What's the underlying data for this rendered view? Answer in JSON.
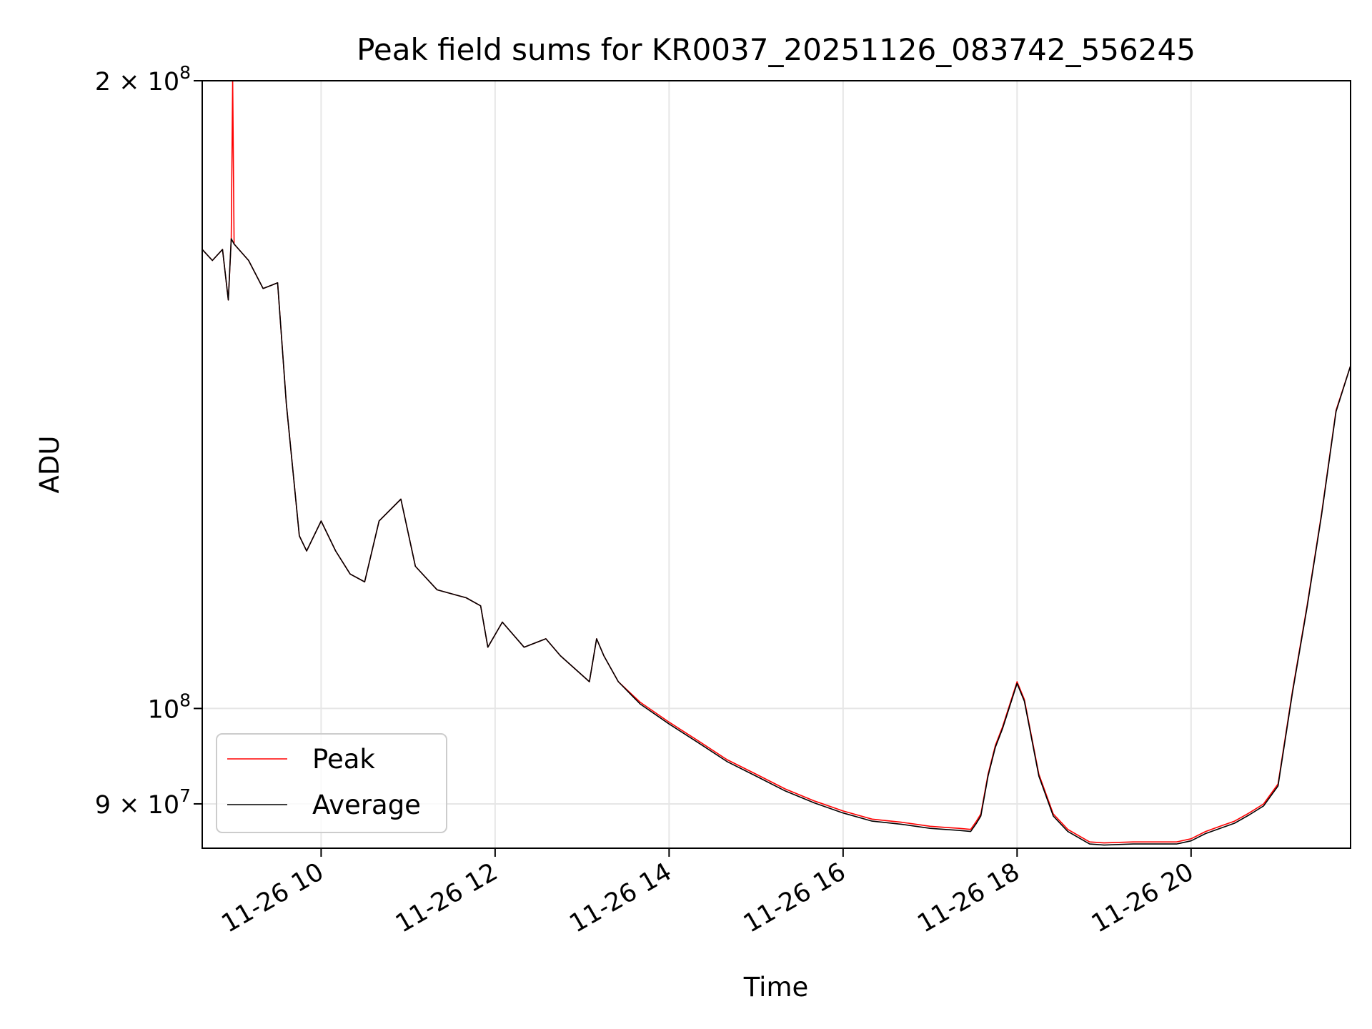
{
  "chart_data": {
    "type": "line",
    "title": "Peak field sums for KR0037_20251126_083742_556245",
    "xlabel": "Time",
    "ylabel": "ADU",
    "yscale": "log",
    "grid": true,
    "legend_position": "lower-left",
    "xlim": [
      "2025-11-26 08:38",
      "2025-11-26 21:50"
    ],
    "ylim": [
      85700000,
      200000000
    ],
    "x_ticks": [
      {
        "value": "2025-11-26 10:00",
        "label": "11-26 10"
      },
      {
        "value": "2025-11-26 12:00",
        "label": "11-26 12"
      },
      {
        "value": "2025-11-26 14:00",
        "label": "11-26 14"
      },
      {
        "value": "2025-11-26 16:00",
        "label": "11-26 16"
      },
      {
        "value": "2025-11-26 18:00",
        "label": "11-26 18"
      },
      {
        "value": "2025-11-26 20:00",
        "label": "11-26 20"
      }
    ],
    "y_ticks": [
      {
        "value": 200000000,
        "base": "2 × 10",
        "exp": "8"
      },
      {
        "value": 100000000,
        "base": "10",
        "exp": "8"
      },
      {
        "value": 90000000,
        "base": "9 × 10",
        "exp": "7"
      }
    ],
    "series": [
      {
        "name": "Peak",
        "color": "#ff0000",
        "points": [
          [
            "2025-11-26 08:38",
            166000000
          ],
          [
            "2025-11-26 08:45",
            164000000
          ],
          [
            "2025-11-26 08:52",
            166000000
          ],
          [
            "2025-11-26 08:56",
            157000000
          ],
          [
            "2025-11-26 08:58",
            168000000
          ],
          [
            "2025-11-26 08:59",
            200000000
          ],
          [
            "2025-11-26 09:00",
            167000000
          ],
          [
            "2025-11-26 09:10",
            164000000
          ],
          [
            "2025-11-26 09:20",
            159000000
          ],
          [
            "2025-11-26 09:30",
            160000000
          ],
          [
            "2025-11-26 09:36",
            140000000
          ],
          [
            "2025-11-26 09:45",
            121000000
          ],
          [
            "2025-11-26 09:50",
            119000000
          ],
          [
            "2025-11-26 10:00",
            123000000
          ],
          [
            "2025-11-26 10:10",
            119000000
          ],
          [
            "2025-11-26 10:20",
            116000000
          ],
          [
            "2025-11-26 10:30",
            115000000
          ],
          [
            "2025-11-26 10:40",
            123000000
          ],
          [
            "2025-11-26 10:55",
            126000000
          ],
          [
            "2025-11-26 11:05",
            117000000
          ],
          [
            "2025-11-26 11:20",
            114000000
          ],
          [
            "2025-11-26 11:40",
            113000000
          ],
          [
            "2025-11-26 11:50",
            112000000
          ],
          [
            "2025-11-26 11:55",
            107000000
          ],
          [
            "2025-11-26 12:05",
            110000000
          ],
          [
            "2025-11-26 12:20",
            107000000
          ],
          [
            "2025-11-26 12:35",
            108000000
          ],
          [
            "2025-11-26 12:45",
            106000000
          ],
          [
            "2025-11-26 13:05",
            103000000
          ],
          [
            "2025-11-26 13:10",
            108000000
          ],
          [
            "2025-11-26 13:15",
            106000000
          ],
          [
            "2025-11-26 13:25",
            103000000
          ],
          [
            "2025-11-26 13:40",
            100700000
          ],
          [
            "2025-11-26 14:00",
            98500000
          ],
          [
            "2025-11-26 14:20",
            96500000
          ],
          [
            "2025-11-26 14:40",
            94500000
          ],
          [
            "2025-11-26 15:00",
            93000000
          ],
          [
            "2025-11-26 15:20",
            91500000
          ],
          [
            "2025-11-26 15:40",
            90300000
          ],
          [
            "2025-11-26 16:00",
            89300000
          ],
          [
            "2025-11-26 16:20",
            88500000
          ],
          [
            "2025-11-26 16:40",
            88200000
          ],
          [
            "2025-11-26 17:00",
            87800000
          ],
          [
            "2025-11-26 17:10",
            87700000
          ],
          [
            "2025-11-26 17:20",
            87600000
          ],
          [
            "2025-11-26 17:28",
            87500000
          ],
          [
            "2025-11-26 17:32",
            88300000
          ],
          [
            "2025-11-26 17:35",
            89000000
          ],
          [
            "2025-11-26 17:40",
            93000000
          ],
          [
            "2025-11-26 17:45",
            96000000
          ],
          [
            "2025-11-26 17:50",
            98000000
          ],
          [
            "2025-11-26 18:00",
            103000000
          ],
          [
            "2025-11-26 18:05",
            101000000
          ],
          [
            "2025-11-26 18:15",
            93000000
          ],
          [
            "2025-11-26 18:25",
            89000000
          ],
          [
            "2025-11-26 18:35",
            87500000
          ],
          [
            "2025-11-26 18:50",
            86300000
          ],
          [
            "2025-11-26 19:00",
            86200000
          ],
          [
            "2025-11-26 19:20",
            86300000
          ],
          [
            "2025-11-26 19:40",
            86300000
          ],
          [
            "2025-11-26 19:50",
            86300000
          ],
          [
            "2025-11-26 20:00",
            86600000
          ],
          [
            "2025-11-26 20:10",
            87300000
          ],
          [
            "2025-11-26 20:20",
            87800000
          ],
          [
            "2025-11-26 20:30",
            88300000
          ],
          [
            "2025-11-26 20:40",
            89100000
          ],
          [
            "2025-11-26 20:50",
            90000000
          ],
          [
            "2025-11-26 21:00",
            92000000
          ],
          [
            "2025-11-26 21:10",
            102000000
          ],
          [
            "2025-11-26 21:20",
            112000000
          ],
          [
            "2025-11-26 21:30",
            124000000
          ],
          [
            "2025-11-26 21:40",
            139000000
          ],
          [
            "2025-11-26 21:50",
            146000000
          ]
        ]
      },
      {
        "name": "Average",
        "color": "#000000",
        "points": [
          [
            "2025-11-26 08:38",
            166000000
          ],
          [
            "2025-11-26 08:45",
            164000000
          ],
          [
            "2025-11-26 08:52",
            166000000
          ],
          [
            "2025-11-26 08:56",
            157000000
          ],
          [
            "2025-11-26 08:58",
            168000000
          ],
          [
            "2025-11-26 09:00",
            167000000
          ],
          [
            "2025-11-26 09:10",
            164000000
          ],
          [
            "2025-11-26 09:20",
            159000000
          ],
          [
            "2025-11-26 09:30",
            160000000
          ],
          [
            "2025-11-26 09:36",
            140000000
          ],
          [
            "2025-11-26 09:45",
            121000000
          ],
          [
            "2025-11-26 09:50",
            119000000
          ],
          [
            "2025-11-26 10:00",
            123000000
          ],
          [
            "2025-11-26 10:10",
            119000000
          ],
          [
            "2025-11-26 10:20",
            116000000
          ],
          [
            "2025-11-26 10:30",
            115000000
          ],
          [
            "2025-11-26 10:40",
            123000000
          ],
          [
            "2025-11-26 10:55",
            126000000
          ],
          [
            "2025-11-26 11:05",
            117000000
          ],
          [
            "2025-11-26 11:20",
            114000000
          ],
          [
            "2025-11-26 11:40",
            113000000
          ],
          [
            "2025-11-26 11:50",
            112000000
          ],
          [
            "2025-11-26 11:55",
            107000000
          ],
          [
            "2025-11-26 12:05",
            110000000
          ],
          [
            "2025-11-26 12:20",
            107000000
          ],
          [
            "2025-11-26 12:35",
            108000000
          ],
          [
            "2025-11-26 12:45",
            106000000
          ],
          [
            "2025-11-26 13:05",
            103000000
          ],
          [
            "2025-11-26 13:10",
            108000000
          ],
          [
            "2025-11-26 13:15",
            106000000
          ],
          [
            "2025-11-26 13:25",
            103000000
          ],
          [
            "2025-11-26 13:40",
            100500000
          ],
          [
            "2025-11-26 14:00",
            98300000
          ],
          [
            "2025-11-26 14:20",
            96300000
          ],
          [
            "2025-11-26 14:40",
            94300000
          ],
          [
            "2025-11-26 15:00",
            92800000
          ],
          [
            "2025-11-26 15:20",
            91300000
          ],
          [
            "2025-11-26 15:40",
            90100000
          ],
          [
            "2025-11-26 16:00",
            89100000
          ],
          [
            "2025-11-26 16:20",
            88300000
          ],
          [
            "2025-11-26 16:40",
            88000000
          ],
          [
            "2025-11-26 17:00",
            87600000
          ],
          [
            "2025-11-26 17:10",
            87500000
          ],
          [
            "2025-11-26 17:20",
            87400000
          ],
          [
            "2025-11-26 17:28",
            87300000
          ],
          [
            "2025-11-26 17:32",
            88100000
          ],
          [
            "2025-11-26 17:35",
            88800000
          ],
          [
            "2025-11-26 17:40",
            92800000
          ],
          [
            "2025-11-26 17:45",
            95800000
          ],
          [
            "2025-11-26 17:50",
            97800000
          ],
          [
            "2025-11-26 18:00",
            102800000
          ],
          [
            "2025-11-26 18:05",
            100800000
          ],
          [
            "2025-11-26 18:15",
            92800000
          ],
          [
            "2025-11-26 18:25",
            88800000
          ],
          [
            "2025-11-26 18:35",
            87300000
          ],
          [
            "2025-11-26 18:50",
            86100000
          ],
          [
            "2025-11-26 19:00",
            86000000
          ],
          [
            "2025-11-26 19:20",
            86100000
          ],
          [
            "2025-11-26 19:40",
            86100000
          ],
          [
            "2025-11-26 19:50",
            86100000
          ],
          [
            "2025-11-26 20:00",
            86400000
          ],
          [
            "2025-11-26 20:10",
            87100000
          ],
          [
            "2025-11-26 20:20",
            87600000
          ],
          [
            "2025-11-26 20:30",
            88100000
          ],
          [
            "2025-11-26 20:40",
            88900000
          ],
          [
            "2025-11-26 20:50",
            89800000
          ],
          [
            "2025-11-26 21:00",
            91800000
          ],
          [
            "2025-11-26 21:10",
            101800000
          ],
          [
            "2025-11-26 21:20",
            111800000
          ],
          [
            "2025-11-26 21:30",
            123800000
          ],
          [
            "2025-11-26 21:40",
            138800000
          ],
          [
            "2025-11-26 21:50",
            146000000
          ]
        ]
      }
    ]
  }
}
